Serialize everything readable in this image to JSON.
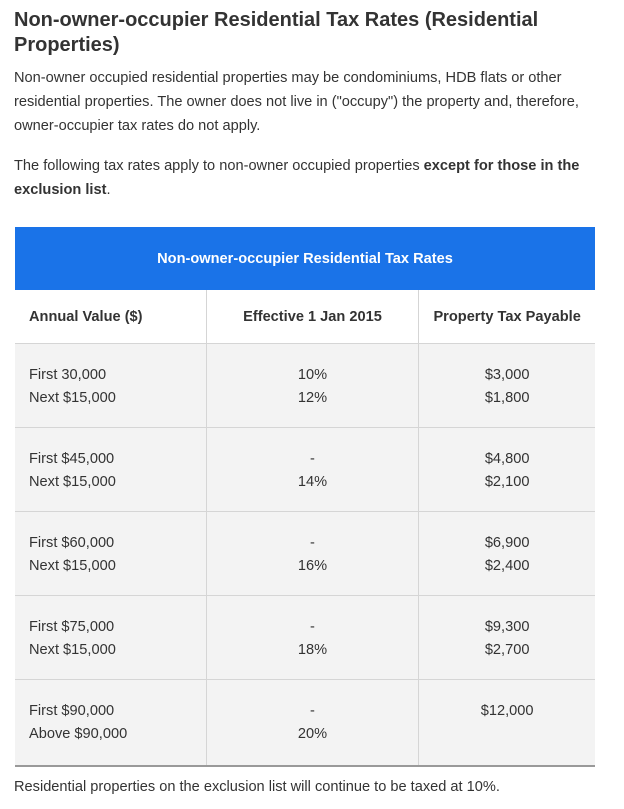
{
  "heading": "Non-owner-occupier Residential Tax Rates (Residential Properties)",
  "intro": "Non-owner occupied residential properties may be condominiums, HDB flats or other residential properties. The owner does not live in (\"occupy\") the property and, therefore, owner-occupier tax rates do not apply.",
  "rates_text": {
    "prefix": "The following tax rates apply to non-owner occupied properties ",
    "bold": "except for those in the exclusion list",
    "suffix": "."
  },
  "table": {
    "caption": "Non-owner-occupier Residential Tax Rates",
    "headers": [
      "Annual Value ($)",
      "Effective 1 Jan 2015",
      "Property Tax Payable"
    ],
    "rows": [
      {
        "av": [
          "First 30,000",
          "Next $15,000"
        ],
        "rate": [
          "10%",
          "12%"
        ],
        "tax": [
          "$3,000",
          "$1,800"
        ]
      },
      {
        "av": [
          "First $45,000",
          "Next $15,000"
        ],
        "rate": [
          "-",
          "14%"
        ],
        "tax": [
          "$4,800",
          "$2,100"
        ]
      },
      {
        "av": [
          "First $60,000",
          "Next $15,000"
        ],
        "rate": [
          "-",
          "16%"
        ],
        "tax": [
          "$6,900",
          "$2,400"
        ]
      },
      {
        "av": [
          "First $75,000",
          "Next $15,000"
        ],
        "rate": [
          "-",
          "18%"
        ],
        "tax": [
          "$9,300",
          "$2,700"
        ]
      },
      {
        "av": [
          "First $90,000",
          "Above $90,000"
        ],
        "rate": [
          "-",
          "20%"
        ],
        "tax": [
          "$12,000",
          ""
        ]
      }
    ]
  },
  "footnote": "Residential properties on the exclusion list will continue to be taxed at 10%.",
  "colors": {
    "caption_bg": "#1a73e8",
    "row_bg": "#f3f3f3",
    "text": "#333333"
  }
}
